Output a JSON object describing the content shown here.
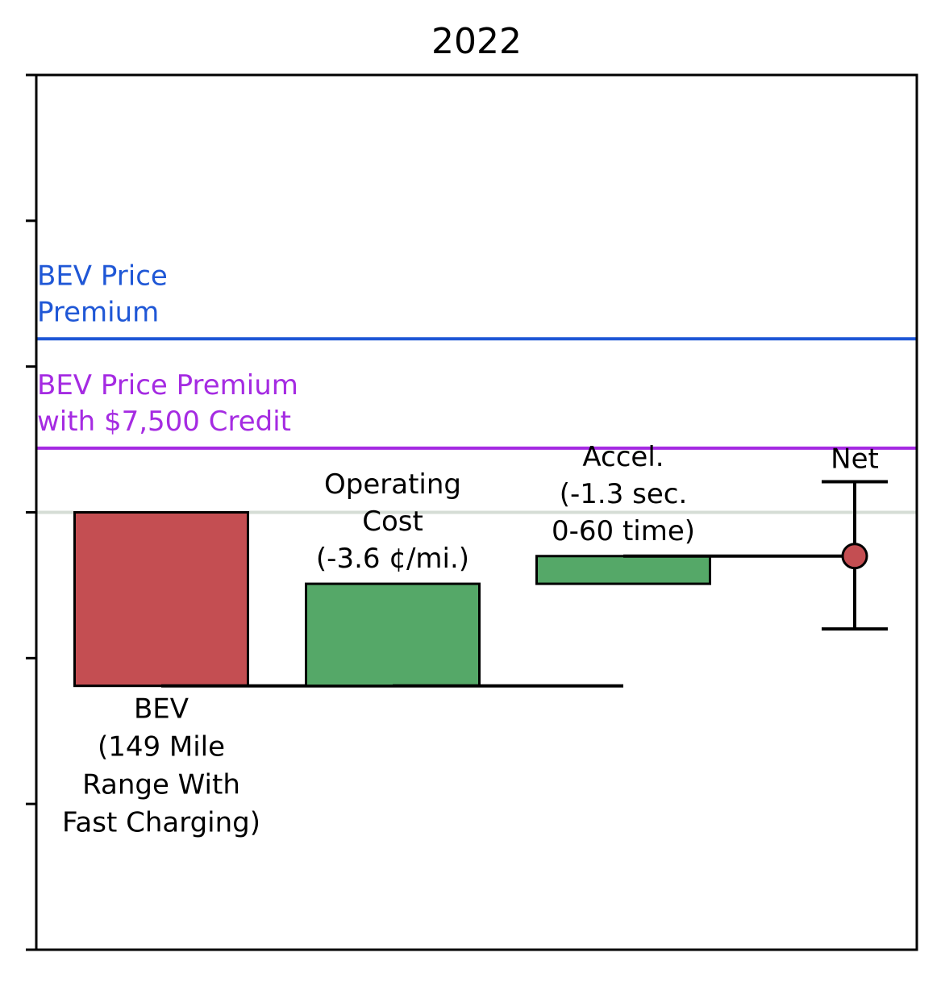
{
  "chart_data": {
    "type": "bar",
    "title": "2022",
    "xlabel": "",
    "ylabel": "",
    "ylim": [
      -3,
      3
    ],
    "y_ticks": [
      -3,
      -2,
      -1,
      0,
      1,
      2,
      3
    ],
    "y_tick_labels_shown": false,
    "grid": false,
    "legend": "none",
    "baseline": {
      "value": 0,
      "color": "#d5ddd5"
    },
    "reference_lines": [
      {
        "id": "premium",
        "value": 1.19,
        "color": "#1f57d6",
        "label": [
          "BEV Price",
          "Premium"
        ]
      },
      {
        "id": "premium-credit",
        "value": 0.44,
        "color": "#a52be2",
        "label": [
          "BEV Price Premium",
          "with $7,500 Credit"
        ]
      }
    ],
    "bars": [
      {
        "id": "bev",
        "label": [
          "BEV",
          "(149 Mile",
          "Range With",
          "Fast Charging)"
        ],
        "label_position": "below",
        "start": -1.19,
        "end": 0,
        "color": "#c44e52"
      },
      {
        "id": "operating-cost",
        "label": [
          "Operating",
          "Cost",
          "(-3.6 ¢/mi.)"
        ],
        "label_position": "above",
        "start": -1.19,
        "end": -0.49,
        "color": "#55a868"
      },
      {
        "id": "accel",
        "label": [
          "Accel.",
          "(-1.3 sec.",
          "0-60 time)"
        ],
        "label_position": "above",
        "start": -0.49,
        "end": -0.3,
        "color": "#55a868"
      }
    ],
    "net": {
      "label": "Net",
      "value": -0.3,
      "error_low": -0.8,
      "error_high": 0.21,
      "color": "#c44e52"
    }
  }
}
